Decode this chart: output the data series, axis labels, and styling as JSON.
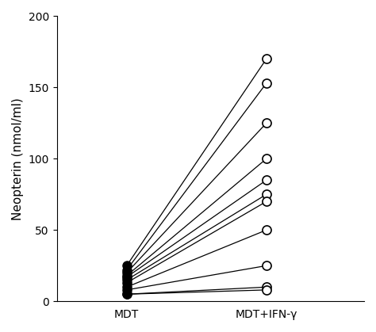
{
  "mdt_values": [
    25,
    22,
    20,
    18,
    17,
    15,
    13,
    10,
    8,
    5,
    5
  ],
  "ifn_values": [
    170,
    153,
    125,
    100,
    85,
    75,
    70,
    50,
    25,
    10,
    8
  ],
  "x_mdt": 1,
  "x_ifn": 2,
  "x_labels": [
    "MDT",
    "MDT+IFN-γ"
  ],
  "x_ticks": [
    1,
    2
  ],
  "ylim": [
    0,
    200
  ],
  "yticks": [
    0,
    50,
    100,
    150,
    200
  ],
  "ylabel": "Neopterin (nmol/ml)",
  "marker_size": 8,
  "line_color": "black",
  "filled_marker": "o",
  "open_marker": "o",
  "filled_color": "black",
  "open_color": "white",
  "open_edge_color": "black",
  "background_color": "white"
}
